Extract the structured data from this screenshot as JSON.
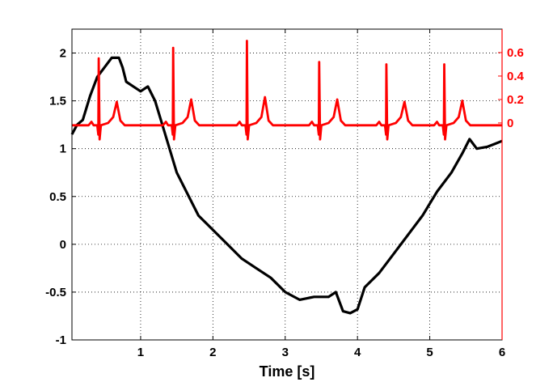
{
  "chart_data": {
    "type": "line",
    "xlabel": "Time [s]",
    "xlim": [
      0.05,
      6.0
    ],
    "x_ticks": [
      1,
      2,
      3,
      4,
      5,
      6
    ],
    "grid": true,
    "colors": {
      "left": "#000000",
      "right": "#ff0000"
    },
    "left_axis": {
      "ylim": [
        -1.0,
        2.25
      ],
      "ticks": [
        -1,
        -0.5,
        0,
        0.5,
        1,
        1.5,
        2
      ],
      "tick_labels": [
        "-1",
        "-0.5",
        "0",
        "0.5",
        "1",
        "1.5",
        "2"
      ]
    },
    "right_axis": {
      "ylim": [
        -1.85,
        0.8
      ],
      "ticks": [
        0,
        0.2,
        0.4,
        0.6
      ],
      "tick_labels": [
        "0",
        "0.2",
        "0.4",
        "0.6"
      ]
    },
    "series": [
      {
        "axis": "left",
        "x": [
          0.05,
          0.12,
          0.2,
          0.3,
          0.4,
          0.5,
          0.6,
          0.7,
          0.75,
          0.8,
          0.9,
          1.0,
          1.1,
          1.2,
          1.3,
          1.4,
          1.5,
          1.6,
          1.8,
          2.0,
          2.2,
          2.4,
          2.6,
          2.8,
          3.0,
          3.2,
          3.4,
          3.6,
          3.7,
          3.8,
          3.9,
          4.0,
          4.1,
          4.3,
          4.5,
          4.7,
          4.9,
          5.1,
          5.3,
          5.45,
          5.55,
          5.65,
          5.8,
          5.9,
          6.0
        ],
        "y": [
          1.15,
          1.25,
          1.3,
          1.55,
          1.75,
          1.85,
          1.95,
          1.95,
          1.85,
          1.7,
          1.65,
          1.6,
          1.65,
          1.5,
          1.25,
          1.0,
          0.75,
          0.6,
          0.3,
          0.15,
          0.0,
          -0.15,
          -0.25,
          -0.35,
          -0.5,
          -0.58,
          -0.55,
          -0.55,
          -0.5,
          -0.7,
          -0.72,
          -0.68,
          -0.45,
          -0.3,
          -0.1,
          0.1,
          0.3,
          0.55,
          0.75,
          0.95,
          1.1,
          1.0,
          1.02,
          1.05,
          1.08
        ]
      },
      {
        "axis": "right",
        "baseline": -0.02,
        "beats_x": [
          0.42,
          1.45,
          2.47,
          3.47,
          4.4,
          5.2
        ],
        "r_peaks": [
          0.55,
          0.64,
          0.7,
          0.52,
          0.5,
          0.5
        ],
        "t_waves": [
          0.18,
          0.2,
          0.22,
          0.2,
          0.18,
          0.19
        ]
      }
    ]
  }
}
